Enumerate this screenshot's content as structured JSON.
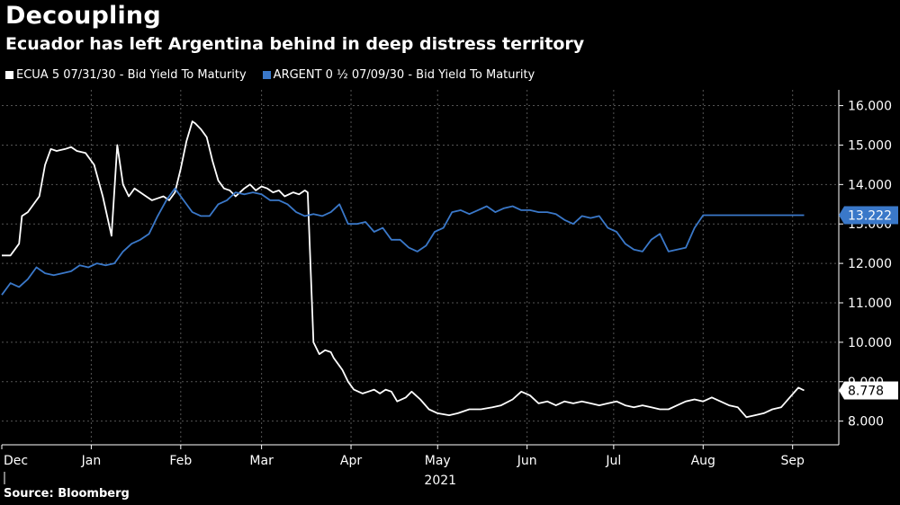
{
  "title": "Decoupling",
  "subtitle": "Ecuador has left Argentina behind in deep distress territory",
  "source": "Source: Bloomberg",
  "colors": {
    "background": "#000000",
    "ecuador": "#ffffff",
    "argentina": "#3a78c9",
    "grid": "#555555"
  },
  "chart_data": {
    "type": "line",
    "title": "Decoupling",
    "subtitle": "Ecuador has left Argentina behind in deep distress territory",
    "ylim": [
      7.4,
      16.4
    ],
    "y_ticks": [
      "16.000",
      "15.000",
      "14.000",
      "13.000",
      "12.000",
      "11.000",
      "10.000",
      "9.000",
      "8.000"
    ],
    "x_ticks": [
      "Dec",
      "Jan",
      "Feb",
      "Mar",
      "Apr",
      "May",
      "Jun",
      "Jul",
      "Aug",
      "Sep"
    ],
    "x_year_label": "2021",
    "x_unit": "days since 2020-12-01",
    "x_tick_positions": [
      0,
      31,
      62,
      90,
      121,
      151,
      182,
      212,
      243,
      274
    ],
    "series": [
      {
        "name": "ECUA 5 07/31/30 - Bid Yield To Maturity",
        "last_value": "8.778",
        "x": [
          0,
          3,
          6,
          7,
          9,
          13,
          15,
          17,
          19,
          22,
          24,
          26,
          29,
          32,
          35,
          38,
          40,
          42,
          44,
          45,
          46,
          48,
          50,
          52,
          54,
          56,
          58,
          60,
          62,
          64,
          66,
          67,
          69,
          71,
          73,
          75,
          77,
          79,
          81,
          84,
          86,
          88,
          90,
          92,
          94,
          96,
          98,
          101,
          103,
          105,
          106,
          108,
          110,
          112,
          114,
          115,
          117,
          118,
          120,
          122,
          125,
          127,
          129,
          131,
          133,
          135,
          137,
          140,
          142,
          145,
          148,
          151,
          155,
          158,
          162,
          166,
          170,
          173,
          177,
          180,
          183,
          186,
          189,
          192,
          195,
          198,
          201,
          204,
          207,
          210,
          213,
          216,
          219,
          222,
          225,
          228,
          231,
          234,
          237,
          240,
          243,
          246,
          249,
          252,
          255,
          258,
          261,
          264,
          267,
          270,
          273,
          276,
          278
        ],
        "values": [
          12.2,
          12.2,
          12.5,
          13.2,
          13.3,
          13.7,
          14.5,
          14.9,
          14.85,
          14.9,
          14.95,
          14.85,
          14.8,
          14.5,
          13.7,
          12.7,
          15.0,
          14.0,
          13.7,
          13.8,
          13.9,
          13.8,
          13.7,
          13.6,
          13.65,
          13.7,
          13.6,
          13.8,
          14.4,
          15.1,
          15.6,
          15.55,
          15.4,
          15.2,
          14.6,
          14.1,
          13.9,
          13.85,
          13.7,
          13.9,
          14.0,
          13.85,
          13.95,
          13.9,
          13.8,
          13.85,
          13.7,
          13.8,
          13.75,
          13.85,
          13.8,
          10.0,
          9.7,
          9.8,
          9.75,
          9.6,
          9.4,
          9.3,
          9.0,
          8.8,
          8.7,
          8.75,
          8.8,
          8.7,
          8.8,
          8.75,
          8.5,
          8.6,
          8.75,
          8.55,
          8.3,
          8.2,
          8.15,
          8.2,
          8.3,
          8.3,
          8.35,
          8.4,
          8.55,
          8.75,
          8.65,
          8.45,
          8.5,
          8.4,
          8.5,
          8.45,
          8.5,
          8.45,
          8.4,
          8.45,
          8.5,
          8.4,
          8.35,
          8.4,
          8.35,
          8.3,
          8.3,
          8.4,
          8.5,
          8.55,
          8.5,
          8.6,
          8.5,
          8.4,
          8.35,
          8.1,
          8.15,
          8.2,
          8.3,
          8.35,
          8.6,
          8.85,
          8.778
        ]
      },
      {
        "name": "ARGENT 0 ½ 07/09/30 - Bid Yield To Maturity",
        "last_value": "13.222",
        "x": [
          0,
          3,
          6,
          9,
          12,
          15,
          18,
          21,
          24,
          27,
          30,
          33,
          36,
          39,
          42,
          45,
          48,
          51,
          54,
          57,
          60,
          63,
          66,
          69,
          72,
          75,
          78,
          81,
          84,
          87,
          90,
          93,
          96,
          99,
          102,
          105,
          108,
          111,
          114,
          117,
          120,
          123,
          126,
          129,
          132,
          135,
          138,
          141,
          144,
          147,
          150,
          153,
          156,
          159,
          162,
          165,
          168,
          171,
          174,
          177,
          180,
          183,
          186,
          189,
          192,
          195,
          198,
          201,
          204,
          207,
          210,
          213,
          216,
          219,
          222,
          225,
          228,
          231,
          234,
          237,
          240,
          243,
          246,
          249,
          252,
          255,
          258,
          261,
          264,
          267,
          270,
          273,
          276,
          278
        ],
        "values": [
          11.2,
          11.5,
          11.4,
          11.6,
          11.9,
          11.75,
          11.7,
          11.75,
          11.8,
          11.95,
          11.9,
          12.0,
          11.95,
          12.0,
          12.3,
          12.5,
          12.6,
          12.75,
          13.2,
          13.6,
          13.9,
          13.6,
          13.3,
          13.2,
          13.2,
          13.5,
          13.6,
          13.8,
          13.75,
          13.8,
          13.75,
          13.6,
          13.6,
          13.5,
          13.3,
          13.2,
          13.25,
          13.2,
          13.3,
          13.5,
          13.0,
          13.0,
          13.05,
          12.8,
          12.9,
          12.6,
          12.6,
          12.4,
          12.3,
          12.45,
          12.8,
          12.9,
          13.3,
          13.35,
          13.25,
          13.35,
          13.45,
          13.3,
          13.4,
          13.45,
          13.35,
          13.35,
          13.3,
          13.3,
          13.25,
          13.1,
          13.0,
          13.2,
          13.15,
          13.2,
          12.9,
          12.8,
          12.5,
          12.35,
          12.3,
          12.6,
          12.75,
          12.3,
          12.35,
          12.4,
          12.9,
          13.222,
          13.222,
          13.222,
          13.222,
          13.222,
          13.222,
          13.222,
          13.222,
          13.222,
          13.222,
          13.222,
          13.222,
          13.222
        ]
      }
    ]
  }
}
